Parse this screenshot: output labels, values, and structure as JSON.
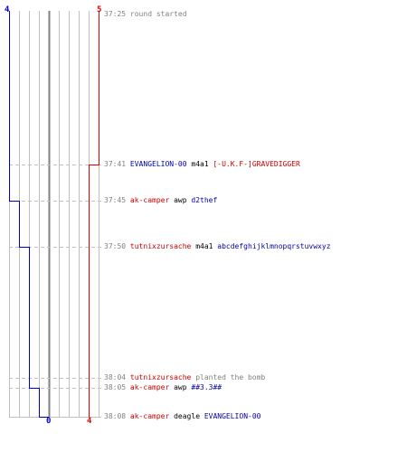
{
  "scale": {
    "blue_top": "4",
    "red_top": "5",
    "blue_bottom": "0",
    "red_bottom": "4"
  },
  "colors": {
    "blue": "#0000cc",
    "red": "#dd0000",
    "grid": "#c0c0c0",
    "axis": "#808080",
    "time": "#808080"
  },
  "events": [
    {
      "time": "37:25",
      "note": "round started"
    },
    {
      "time": "37:41",
      "killer": "EVANGELION-00",
      "killer_team": "blue",
      "weapon": "m4a1",
      "victim": "[-U.K.F-]GRAVEDIGGER",
      "victim_team": "red"
    },
    {
      "time": "37:45",
      "killer": "ak-camper",
      "killer_team": "red",
      "weapon": "awp",
      "victim": "d2thef",
      "victim_team": "blue"
    },
    {
      "time": "37:50",
      "killer": "tutnixzursache",
      "killer_team": "red",
      "weapon": "m4a1",
      "victim": "abcdefghijklmnopqrstuvwxyz",
      "victim_team": "blue"
    },
    {
      "time": "38:04",
      "killer": "tutnixzursache",
      "killer_team": "red",
      "note": "planted the bomb"
    },
    {
      "time": "38:05",
      "killer": "ak-camper",
      "killer_team": "red",
      "weapon": "awp",
      "victim": "##3.3##",
      "victim_team": "blue"
    },
    {
      "time": "38:08",
      "killer": "ak-camper",
      "killer_team": "red",
      "weapon": "deagle",
      "victim": "EVANGELION-00",
      "victim_team": "blue"
    }
  ]
}
